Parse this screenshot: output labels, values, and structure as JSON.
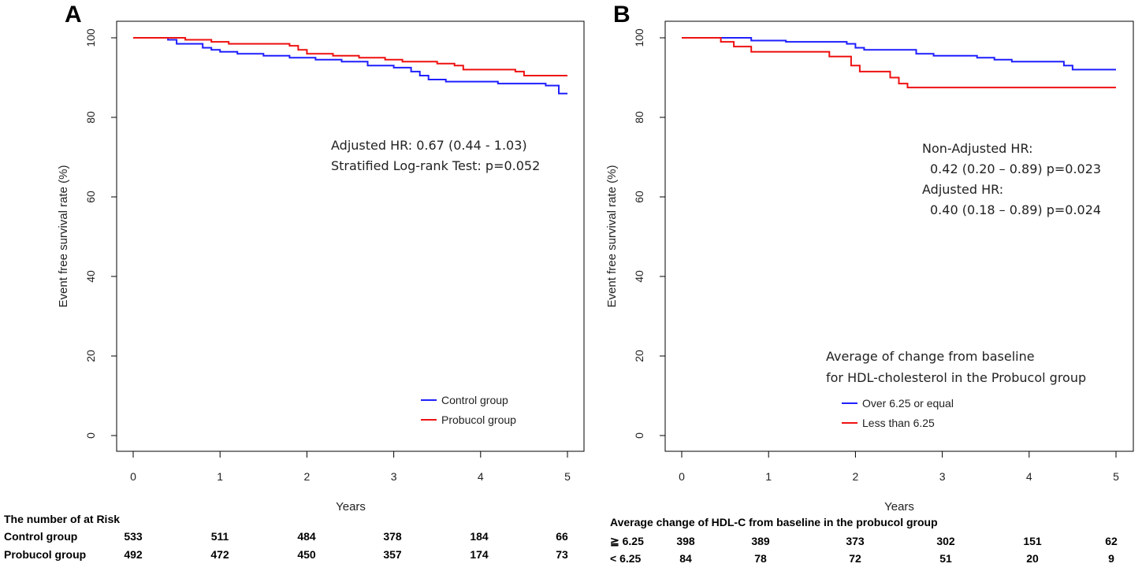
{
  "chart_data": [
    {
      "panel": "A",
      "type": "line",
      "xlabel": "Years",
      "ylabel": "Event free survival rate (%)",
      "xlim": [
        0,
        5
      ],
      "ylim": [
        0,
        100
      ],
      "xticks": [
        "0",
        "1",
        "2",
        "3",
        "4",
        "5"
      ],
      "yticks": [
        "0",
        "20",
        "40",
        "60",
        "80",
        "100"
      ],
      "series": [
        {
          "name": "Control group",
          "color": "#1f1fff",
          "points": [
            [
              0,
              100
            ],
            [
              0.3,
              100
            ],
            [
              0.4,
              99.5
            ],
            [
              0.5,
              98.5
            ],
            [
              0.7,
              98.5
            ],
            [
              0.8,
              97.5
            ],
            [
              0.9,
              97
            ],
            [
              1.0,
              96.5
            ],
            [
              1.2,
              96
            ],
            [
              1.5,
              95.5
            ],
            [
              1.8,
              95
            ],
            [
              2.1,
              94.5
            ],
            [
              2.4,
              94
            ],
            [
              2.7,
              93
            ],
            [
              3.0,
              92.5
            ],
            [
              3.2,
              91.5
            ],
            [
              3.3,
              90.5
            ],
            [
              3.4,
              89.5
            ],
            [
              3.6,
              89
            ],
            [
              4.2,
              88.5
            ],
            [
              4.75,
              88
            ],
            [
              4.9,
              86
            ],
            [
              5.0,
              86
            ]
          ]
        },
        {
          "name": "Probucol group",
          "color": "#ee1111",
          "points": [
            [
              0,
              100
            ],
            [
              0.5,
              100
            ],
            [
              0.6,
              99.5
            ],
            [
              0.9,
              99
            ],
            [
              1.1,
              98.5
            ],
            [
              1.8,
              98
            ],
            [
              1.9,
              97
            ],
            [
              2.0,
              96
            ],
            [
              2.3,
              95.5
            ],
            [
              2.6,
              95
            ],
            [
              2.9,
              94.5
            ],
            [
              3.1,
              94
            ],
            [
              3.5,
              93.5
            ],
            [
              3.7,
              93
            ],
            [
              3.8,
              92
            ],
            [
              4.4,
              91.5
            ],
            [
              4.5,
              90.5
            ],
            [
              5.0,
              90.5
            ]
          ]
        }
      ],
      "annotations": [
        "Adjusted HR: 0.67 (0.44 - 1.03)",
        "Stratified Log-rank Test: p=0.052"
      ],
      "legend": [
        "Control group",
        "Probucol group"
      ],
      "risk_table": {
        "title": "The number of at Risk",
        "rows": [
          {
            "label": "Control group",
            "values": [
              "533",
              "511",
              "484",
              "378",
              "184",
              "66"
            ]
          },
          {
            "label": "Probucol  group",
            "values": [
              "492",
              "472",
              "450",
              "357",
              "174",
              "73"
            ]
          }
        ]
      }
    },
    {
      "panel": "B",
      "type": "line",
      "xlabel": "Years",
      "ylabel": "Event free survival rate (%)",
      "xlim": [
        0,
        5
      ],
      "ylim": [
        0,
        100
      ],
      "xticks": [
        "0",
        "1",
        "2",
        "3",
        "4",
        "5"
      ],
      "yticks": [
        "0",
        "20",
        "40",
        "60",
        "80",
        "100"
      ],
      "series": [
        {
          "name": "Over 6.25 or equal",
          "color": "#1f1fff",
          "points": [
            [
              0,
              100
            ],
            [
              0.75,
              100
            ],
            [
              0.8,
              99.3
            ],
            [
              1.2,
              99
            ],
            [
              1.9,
              98.5
            ],
            [
              2.0,
              97.5
            ],
            [
              2.1,
              97
            ],
            [
              2.7,
              96
            ],
            [
              2.9,
              95.5
            ],
            [
              3.4,
              95
            ],
            [
              3.6,
              94.5
            ],
            [
              3.8,
              94
            ],
            [
              4.4,
              93
            ],
            [
              4.5,
              92
            ],
            [
              5.0,
              92
            ]
          ]
        },
        {
          "name": "Less than 6.25",
          "color": "#ee1111",
          "points": [
            [
              0,
              100
            ],
            [
              0.4,
              100
            ],
            [
              0.45,
              99
            ],
            [
              0.6,
              97.8
            ],
            [
              0.8,
              96.5
            ],
            [
              1.35,
              96.5
            ],
            [
              1.7,
              95.3
            ],
            [
              1.95,
              93
            ],
            [
              2.05,
              91.5
            ],
            [
              2.4,
              90
            ],
            [
              2.5,
              88.5
            ],
            [
              2.6,
              87.5
            ],
            [
              5.0,
              87.5
            ]
          ]
        }
      ],
      "annotations": [
        "Non-Adjusted HR:",
        "0.42 (0.20 – 0.89) p=0.023",
        "Adjusted HR:",
        "0.40 (0.18 – 0.89) p=0.024"
      ],
      "legend_title": [
        "Average of change from baseline",
        "for HDL-cholesterol in the Probucol group"
      ],
      "legend": [
        "Over 6.25 or equal",
        "Less than 6.25"
      ],
      "risk_table": {
        "title": "Average change of HDL-C from baseline in the probucol group",
        "rows": [
          {
            "label": "≧ 6.25",
            "values": [
              "398",
              "389",
              "373",
              "302",
              "151",
              "62"
            ]
          },
          {
            "label": "< 6.25",
            "values": [
              "84",
              "78",
              "72",
              "51",
              "20",
              "9"
            ]
          }
        ]
      }
    }
  ]
}
